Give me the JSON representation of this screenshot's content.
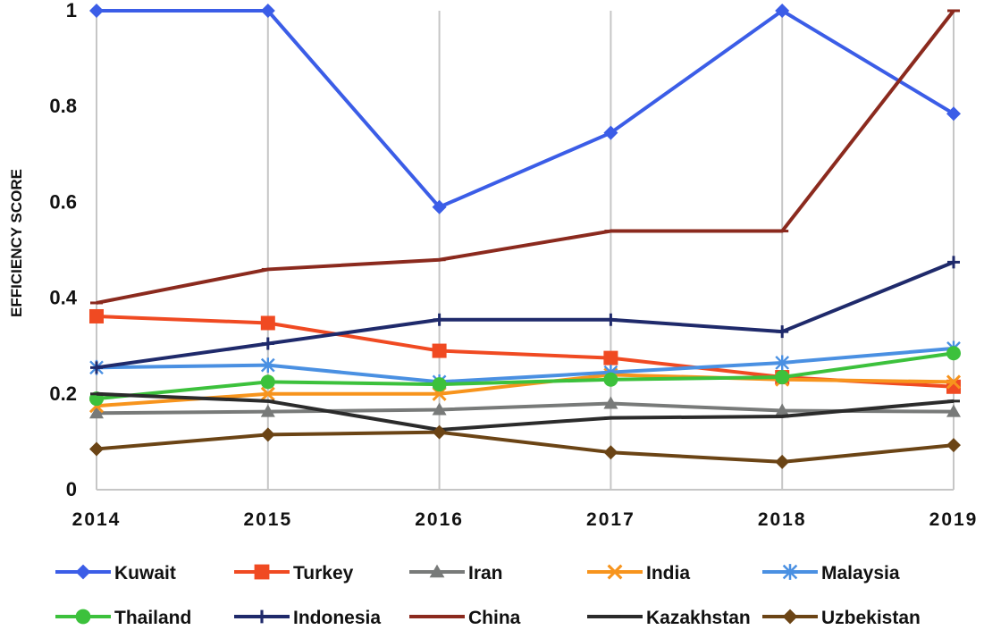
{
  "chart_data": {
    "type": "line",
    "title": "",
    "xlabel": "",
    "ylabel": "EFFICIENCY SCORE",
    "ylim": [
      0,
      1
    ],
    "yticks": [
      0,
      0.2,
      0.4,
      0.6,
      0.8,
      1
    ],
    "ytick_labels": [
      "0",
      "0.2",
      "0.4",
      "0.6",
      "0.8",
      "1"
    ],
    "categories": [
      "2014",
      "2015",
      "2016",
      "2017",
      "2018",
      "2019"
    ],
    "grid": "vertical",
    "legend_position": "bottom",
    "series": [
      {
        "name": "Kuwait",
        "color": "#3b5de7",
        "marker": "diamond",
        "values": [
          1.0,
          1.0,
          0.59,
          0.745,
          1.0,
          0.785
        ]
      },
      {
        "name": "Turkey",
        "color": "#f04a22",
        "marker": "square",
        "values": [
          0.362,
          0.348,
          0.29,
          0.275,
          0.235,
          0.215
        ]
      },
      {
        "name": "Iran",
        "color": "#787a79",
        "marker": "triangle",
        "values": [
          0.16,
          0.163,
          0.167,
          0.18,
          0.165,
          0.163
        ]
      },
      {
        "name": "India",
        "color": "#f7941d",
        "marker": "x",
        "values": [
          0.175,
          0.2,
          0.2,
          0.24,
          0.23,
          0.225
        ]
      },
      {
        "name": "Malaysia",
        "color": "#4a90e2",
        "marker": "asterisk",
        "values": [
          0.255,
          0.26,
          0.225,
          0.245,
          0.265,
          0.295
        ]
      },
      {
        "name": "Thailand",
        "color": "#3cc13c",
        "marker": "circle",
        "values": [
          0.19,
          0.225,
          0.22,
          0.23,
          0.235,
          0.285
        ]
      },
      {
        "name": "Indonesia",
        "color": "#1f2a6b",
        "marker": "plus",
        "values": [
          0.255,
          0.305,
          0.355,
          0.355,
          0.33,
          0.475
        ]
      },
      {
        "name": "China",
        "color": "#8b2a1e",
        "marker": "dash",
        "values": [
          0.39,
          0.46,
          0.48,
          0.54,
          0.54,
          1.0
        ]
      },
      {
        "name": "Kazakhstan",
        "color": "#2b2b2b",
        "marker": "dash",
        "values": [
          0.2,
          0.185,
          0.125,
          0.15,
          0.153,
          0.185
        ]
      },
      {
        "name": "Uzbekistan",
        "color": "#6b4415",
        "marker": "diamond",
        "values": [
          0.085,
          0.115,
          0.12,
          0.078,
          0.058,
          0.093
        ]
      }
    ]
  }
}
